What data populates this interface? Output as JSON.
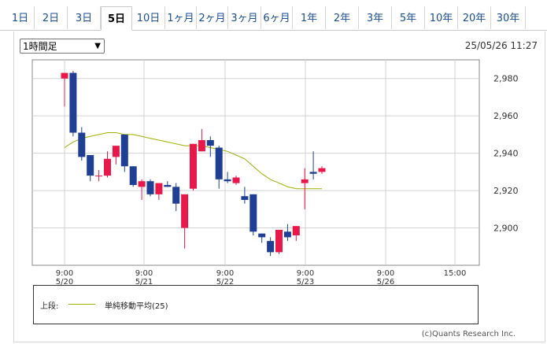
{
  "tabs": [
    {
      "label": "1日",
      "active": false
    },
    {
      "label": "2日",
      "active": false
    },
    {
      "label": "3日",
      "active": false
    },
    {
      "label": "5日",
      "active": true
    },
    {
      "label": "10日",
      "active": false
    },
    {
      "label": "1ヶ月",
      "active": false
    },
    {
      "label": "2ヶ月",
      "active": false
    },
    {
      "label": "3ヶ月",
      "active": false
    },
    {
      "label": "6ヶ月",
      "active": false
    },
    {
      "label": "1年",
      "active": false
    },
    {
      "label": "2年",
      "active": false
    },
    {
      "label": "3年",
      "active": false
    },
    {
      "label": "5年",
      "active": false
    },
    {
      "label": "10年",
      "active": false
    },
    {
      "label": "20年",
      "active": false
    },
    {
      "label": "30年",
      "active": false
    }
  ],
  "interval_select": {
    "value": "1時間足"
  },
  "datetime": "25/05/26 11:27",
  "legend": {
    "prefix": "上段:",
    "label": "単純移動平均(25)"
  },
  "copyright": "(c)Quants Research Inc.",
  "colors": {
    "up": "#e8184a",
    "down": "#1f3f94",
    "ma": "#9fb000",
    "grid": "#d3d3d3"
  },
  "chart_data": {
    "type": "candlestick",
    "title": "",
    "ylim": [
      2880,
      2990
    ],
    "y_ticks": [
      2900,
      2920,
      2940,
      2960,
      2980
    ],
    "y_tick_labels": [
      "2,900",
      "2,920",
      "2,940",
      "2,960",
      "2,980"
    ],
    "x_ticks": [
      {
        "time": "9:00",
        "date": "5/20"
      },
      {
        "time": "9:00",
        "date": "5/21"
      },
      {
        "time": "9:00",
        "date": "5/22"
      },
      {
        "time": "9:00",
        "date": "5/23"
      },
      {
        "time": "9:00",
        "date": "5/26"
      },
      {
        "time": "15:00",
        "date": ""
      }
    ],
    "candles": [
      {
        "o": 2980,
        "h": 2983,
        "c": 2983,
        "l": 2965
      },
      {
        "o": 2983,
        "h": 2984,
        "c": 2951,
        "l": 2949
      },
      {
        "o": 2951,
        "h": 2954,
        "c": 2938,
        "l": 2936
      },
      {
        "o": 2939,
        "h": 2939,
        "c": 2928,
        "l": 2925
      },
      {
        "o": 2928,
        "h": 2931,
        "c": 2928,
        "l": 2925
      },
      {
        "o": 2928,
        "h": 2941,
        "c": 2937,
        "l": 2927
      },
      {
        "o": 2938,
        "h": 2944,
        "c": 2944,
        "l": 2934
      },
      {
        "o": 2950,
        "h": 2950,
        "c": 2933,
        "l": 2930
      },
      {
        "o": 2933,
        "h": 2933,
        "c": 2923,
        "l": 2922
      },
      {
        "o": 2922,
        "h": 2926,
        "c": 2925,
        "l": 2915
      },
      {
        "o": 2925,
        "h": 2926,
        "c": 2918,
        "l": 2917
      },
      {
        "o": 2918,
        "h": 2924,
        "c": 2924,
        "l": 2915
      },
      {
        "o": 2923,
        "h": 2925,
        "c": 2922,
        "l": 2922
      },
      {
        "o": 2922,
        "h": 2924,
        "c": 2913,
        "l": 2909
      },
      {
        "o": 2900,
        "h": 2918,
        "c": 2918,
        "l": 2889
      },
      {
        "o": 2921,
        "h": 2945,
        "c": 2945,
        "l": 2920
      },
      {
        "o": 2941,
        "h": 2953,
        "c": 2947,
        "l": 2941
      },
      {
        "o": 2947,
        "h": 2949,
        "c": 2944,
        "l": 2938
      },
      {
        "o": 2943,
        "h": 2944,
        "c": 2926,
        "l": 2921
      },
      {
        "o": 2926,
        "h": 2930,
        "c": 2925,
        "l": 2924
      },
      {
        "o": 2924,
        "h": 2928,
        "c": 2927,
        "l": 2923
      },
      {
        "o": 2917,
        "h": 2922,
        "c": 2915,
        "l": 2913
      },
      {
        "o": 2918,
        "h": 2918,
        "c": 2898,
        "l": 2896
      },
      {
        "o": 2897,
        "h": 2897,
        "c": 2895,
        "l": 2892
      },
      {
        "o": 2893,
        "h": 2895,
        "c": 2887,
        "l": 2885
      },
      {
        "o": 2887,
        "h": 2899,
        "c": 2899,
        "l": 2886
      },
      {
        "o": 2898,
        "h": 2902,
        "c": 2895,
        "l": 2893
      },
      {
        "o": 2896,
        "h": 2901,
        "c": 2901,
        "l": 2893
      },
      {
        "o": 2924,
        "h": 2932,
        "c": 2926,
        "l": 2910
      },
      {
        "o": 2930,
        "h": 2941,
        "c": 2929,
        "l": 2926
      },
      {
        "o": 2930,
        "h": 2933,
        "c": 2932,
        "l": 2929
      }
    ],
    "ma_series": {
      "name": "単純移動平均(25)",
      "values": [
        2943,
        2946,
        2948,
        2949,
        2950,
        2951,
        2951,
        2950,
        2950,
        2949,
        2948,
        2947,
        2946,
        2945,
        2944,
        2944,
        2944,
        2943,
        2942,
        2941,
        2939,
        2937,
        2933,
        2929,
        2926,
        2924,
        2922,
        2921,
        2921,
        2921,
        2921
      ]
    }
  }
}
